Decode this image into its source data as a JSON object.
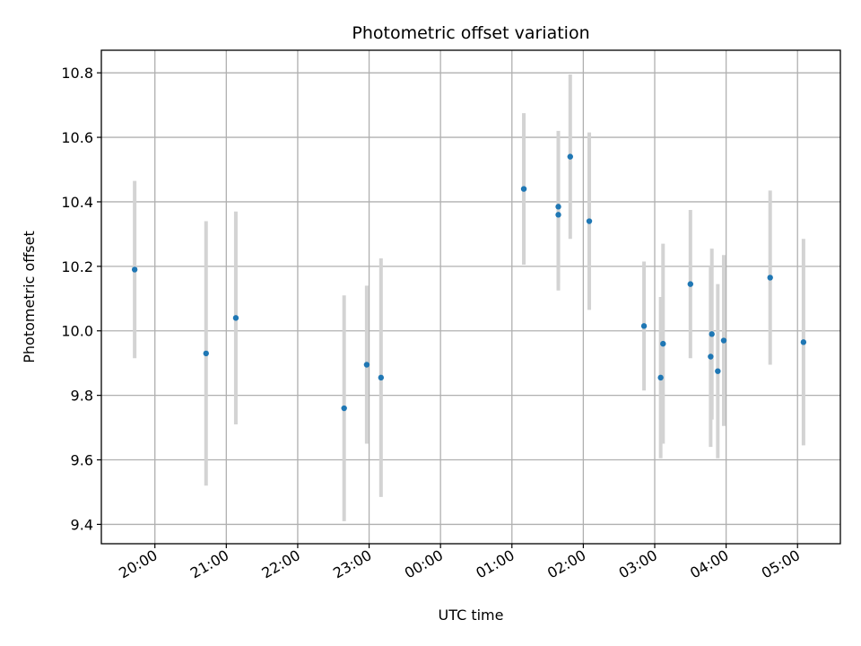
{
  "chart_data": {
    "type": "scatter",
    "title": "Photometric offset variation",
    "xlabel": "UTC time",
    "ylabel": "Photometric offset",
    "grid": true,
    "x_start": "19:15",
    "x_end": "05:36",
    "xlim_minutes_note": "",
    "x_ticks": [
      "20:00",
      "21:00",
      "22:00",
      "23:00",
      "00:00",
      "01:00",
      "02:00",
      "03:00",
      "04:00",
      "05:00"
    ],
    "ylim": [
      9.34,
      10.87
    ],
    "y_ticks": [
      "9.4",
      "9.6",
      "9.8",
      "10.0",
      "10.2",
      "10.4",
      "10.6",
      "10.8"
    ],
    "series": [
      {
        "marker_color": "#1f77b4",
        "errorbar_color": "#d3d3d3",
        "points": [
          {
            "x": "19:43",
            "y": 10.19,
            "err": 0.275
          },
          {
            "x": "20:43",
            "y": 9.93,
            "err": 0.41
          },
          {
            "x": "21:08",
            "y": 10.04,
            "err": 0.33
          },
          {
            "x": "22:39",
            "y": 9.76,
            "err": 0.35
          },
          {
            "x": "22:58",
            "y": 9.895,
            "err": 0.245
          },
          {
            "x": "23:10",
            "y": 9.855,
            "err": 0.37
          },
          {
            "x": "01:10",
            "y": 10.44,
            "err": 0.235
          },
          {
            "x": "01:39",
            "y": 10.385,
            "err": 0.235
          },
          {
            "x": "01:39",
            "y": 10.36,
            "err": 0.235
          },
          {
            "x": "01:49",
            "y": 10.54,
            "err": 0.255
          },
          {
            "x": "02:05",
            "y": 10.34,
            "err": 0.275
          },
          {
            "x": "02:51",
            "y": 10.015,
            "err": 0.2
          },
          {
            "x": "03:05",
            "y": 9.855,
            "err": 0.25
          },
          {
            "x": "03:07",
            "y": 9.96,
            "err": 0.31
          },
          {
            "x": "03:30",
            "y": 10.145,
            "err": 0.23
          },
          {
            "x": "03:47",
            "y": 9.92,
            "err": 0.28
          },
          {
            "x": "03:48",
            "y": 9.99,
            "err": 0.265
          },
          {
            "x": "03:53",
            "y": 9.875,
            "err": 0.27
          },
          {
            "x": "03:58",
            "y": 9.97,
            "err": 0.265
          },
          {
            "x": "04:37",
            "y": 10.165,
            "err": 0.27
          },
          {
            "x": "05:05",
            "y": 9.965,
            "err": 0.32
          }
        ]
      }
    ]
  }
}
